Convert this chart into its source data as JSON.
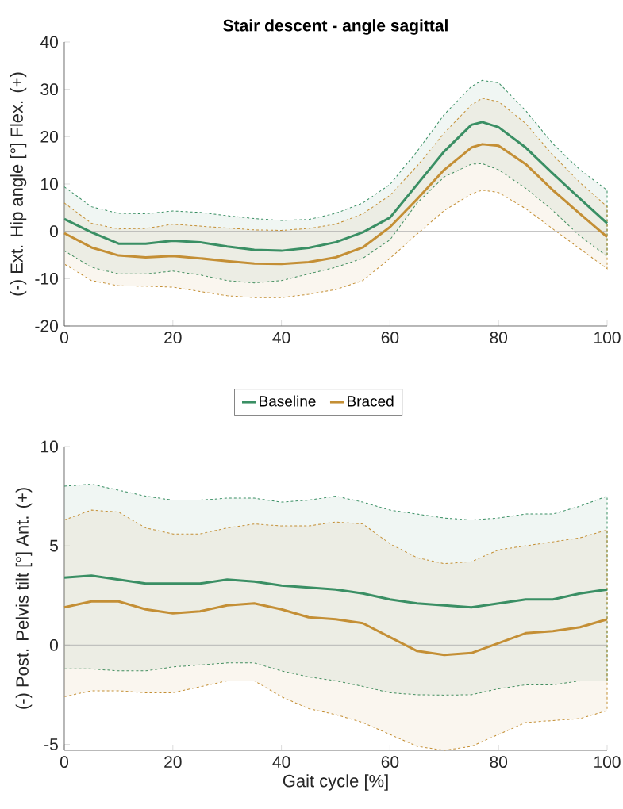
{
  "chart_data": [
    {
      "type": "line",
      "title": "Stair descent - angle sagittal",
      "ylabel": "(-) Ext.  Hip angle [°]  Flex. (+)",
      "marker": "none",
      "line_style": "solid",
      "x": [
        0,
        5,
        10,
        15,
        20,
        25,
        30,
        35,
        40,
        45,
        50,
        55,
        60,
        65,
        70,
        75,
        77,
        80,
        85,
        90,
        95,
        100
      ],
      "xlim": [
        0,
        100
      ],
      "xticks": [
        0,
        20,
        40,
        60,
        80,
        100
      ],
      "ylim": [
        -20,
        40
      ],
      "yticks": [
        -20,
        -10,
        0,
        10,
        20,
        30,
        40
      ],
      "ref_lines": [
        {
          "axis": "y",
          "value": 0,
          "color": "#a8a8a8"
        }
      ],
      "series": [
        {
          "color": "#3a8f64",
          "values": [
            2.6,
            -0.2,
            -2.6,
            -2.6,
            -2.0,
            -2.3,
            -3.2,
            -3.9,
            -4.1,
            -3.5,
            -2.3,
            -0.2,
            2.9,
            9.9,
            16.9,
            22.5,
            23.1,
            22.0,
            17.7,
            12.2,
            6.9,
            1.7
          ],
          "upper": [
            9.4,
            5.2,
            3.8,
            3.7,
            4.3,
            4.0,
            3.3,
            2.7,
            2.3,
            2.5,
            3.8,
            6.0,
            9.9,
            16.9,
            24.7,
            30.6,
            31.9,
            31.4,
            25.5,
            18.5,
            13.0,
            8.7
          ],
          "lower": [
            -4.1,
            -7.6,
            -9.0,
            -9.0,
            -8.4,
            -9.2,
            -10.4,
            -10.9,
            -10.4,
            -9.0,
            -7.6,
            -5.7,
            -1.8,
            6.0,
            11.5,
            14.2,
            14.3,
            13.0,
            9.1,
            4.4,
            -1.0,
            -5.3
          ]
        },
        {
          "color": "#c48f35",
          "values": [
            -0.4,
            -3.4,
            -5.1,
            -5.5,
            -5.2,
            -5.7,
            -6.3,
            -6.8,
            -6.9,
            -6.5,
            -5.5,
            -3.4,
            0.9,
            6.8,
            13.0,
            17.7,
            18.4,
            18.1,
            14.2,
            8.7,
            3.7,
            -1.2
          ],
          "upper": [
            6.0,
            1.7,
            0.5,
            0.6,
            1.5,
            1.1,
            0.7,
            0.3,
            0.2,
            0.6,
            1.5,
            3.7,
            7.6,
            13.8,
            20.8,
            26.7,
            28.1,
            27.4,
            22.8,
            16.1,
            10.3,
            5.2
          ],
          "lower": [
            -6.9,
            -10.4,
            -11.5,
            -11.6,
            -11.8,
            -12.7,
            -13.6,
            -14.0,
            -14.0,
            -13.3,
            -12.3,
            -10.4,
            -5.7,
            -0.6,
            4.4,
            7.9,
            8.7,
            8.2,
            4.8,
            0.5,
            -3.7,
            -7.9
          ]
        }
      ]
    },
    {
      "type": "line",
      "xlabel": "Gait cycle [%]",
      "ylabel": "(-) Post.  Pelvis tilt [°]  Ant. (+)",
      "marker": "none",
      "line_style": "solid",
      "legend": "top",
      "x": [
        0,
        5,
        10,
        15,
        20,
        25,
        30,
        35,
        40,
        45,
        50,
        55,
        60,
        65,
        70,
        75,
        80,
        85,
        90,
        95,
        100
      ],
      "xlim": [
        0,
        100
      ],
      "xticks": [
        0,
        20,
        40,
        60,
        80,
        100
      ],
      "ylim": [
        -5.3,
        10
      ],
      "yticks": [
        -5,
        0,
        5,
        10
      ],
      "ref_lines": [
        {
          "axis": "y",
          "value": 0,
          "color": "#a8a8a8"
        }
      ],
      "series": [
        {
          "name": "Baseline",
          "color": "#3a8f64",
          "values": [
            3.4,
            3.5,
            3.3,
            3.1,
            3.1,
            3.1,
            3.3,
            3.2,
            3.0,
            2.9,
            2.8,
            2.6,
            2.3,
            2.1,
            2.0,
            1.9,
            2.1,
            2.3,
            2.3,
            2.6,
            2.8
          ],
          "upper": [
            8.0,
            8.1,
            7.8,
            7.5,
            7.3,
            7.3,
            7.4,
            7.4,
            7.2,
            7.3,
            7.5,
            7.2,
            6.8,
            6.6,
            6.4,
            6.3,
            6.4,
            6.6,
            6.6,
            7.0,
            7.5
          ],
          "lower": [
            -1.2,
            -1.2,
            -1.3,
            -1.3,
            -1.1,
            -1.0,
            -0.9,
            -0.9,
            -1.3,
            -1.6,
            -1.8,
            -2.08,
            -2.4,
            -2.5,
            -2.52,
            -2.5,
            -2.2,
            -2.0,
            -2.0,
            -1.8,
            -1.8
          ]
        },
        {
          "name": "Braced",
          "color": "#c48f35",
          "values": [
            1.9,
            2.2,
            2.2,
            1.8,
            1.6,
            1.7,
            2.0,
            2.1,
            1.8,
            1.4,
            1.3,
            1.1,
            0.4,
            -0.3,
            -0.5,
            -0.4,
            0.1,
            0.6,
            0.7,
            0.9,
            1.3
          ],
          "upper": [
            6.3,
            6.8,
            6.7,
            5.9,
            5.6,
            5.6,
            5.9,
            6.1,
            6.0,
            6.0,
            6.2,
            6.1,
            5.1,
            4.4,
            4.1,
            4.2,
            4.8,
            5.0,
            5.2,
            5.4,
            5.8
          ],
          "lower": [
            -2.6,
            -2.3,
            -2.3,
            -2.4,
            -2.4,
            -2.1,
            -1.8,
            -1.8,
            -2.6,
            -3.2,
            -3.5,
            -3.9,
            -4.5,
            -5.1,
            -5.3,
            -5.1,
            -4.5,
            -3.9,
            -3.8,
            -3.7,
            -3.3
          ]
        }
      ]
    }
  ]
}
